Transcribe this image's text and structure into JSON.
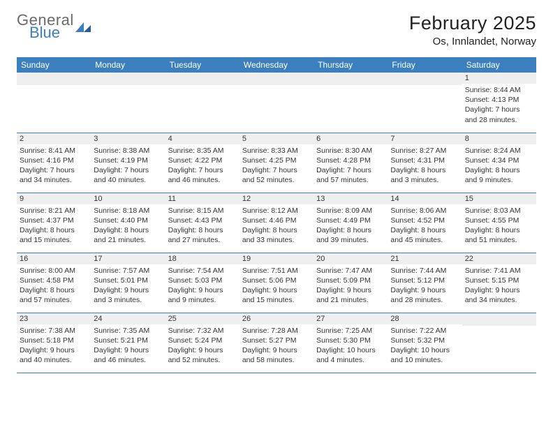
{
  "logo": {
    "text_top": "General",
    "text_bottom": "Blue"
  },
  "header": {
    "title": "February 2025",
    "subtitle": "Os, Innlandet, Norway"
  },
  "colors": {
    "accent": "#3b7fbf",
    "header_bg": "#3b7fbf",
    "header_fg": "#ffffff",
    "daynum_bg": "#efefef",
    "text": "#333333",
    "background": "#ffffff"
  },
  "calendar": {
    "day_headers": [
      "Sunday",
      "Monday",
      "Tuesday",
      "Wednesday",
      "Thursday",
      "Friday",
      "Saturday"
    ],
    "weeks": [
      {
        "cells": [
          {
            "day": "",
            "lines": []
          },
          {
            "day": "",
            "lines": []
          },
          {
            "day": "",
            "lines": []
          },
          {
            "day": "",
            "lines": []
          },
          {
            "day": "",
            "lines": []
          },
          {
            "day": "",
            "lines": []
          },
          {
            "day": "1",
            "lines": [
              "Sunrise: 8:44 AM",
              "Sunset: 4:13 PM",
              "Daylight: 7 hours and 28 minutes."
            ]
          }
        ]
      },
      {
        "cells": [
          {
            "day": "2",
            "lines": [
              "Sunrise: 8:41 AM",
              "Sunset: 4:16 PM",
              "Daylight: 7 hours and 34 minutes."
            ]
          },
          {
            "day": "3",
            "lines": [
              "Sunrise: 8:38 AM",
              "Sunset: 4:19 PM",
              "Daylight: 7 hours and 40 minutes."
            ]
          },
          {
            "day": "4",
            "lines": [
              "Sunrise: 8:35 AM",
              "Sunset: 4:22 PM",
              "Daylight: 7 hours and 46 minutes."
            ]
          },
          {
            "day": "5",
            "lines": [
              "Sunrise: 8:33 AM",
              "Sunset: 4:25 PM",
              "Daylight: 7 hours and 52 minutes."
            ]
          },
          {
            "day": "6",
            "lines": [
              "Sunrise: 8:30 AM",
              "Sunset: 4:28 PM",
              "Daylight: 7 hours and 57 minutes."
            ]
          },
          {
            "day": "7",
            "lines": [
              "Sunrise: 8:27 AM",
              "Sunset: 4:31 PM",
              "Daylight: 8 hours and 3 minutes."
            ]
          },
          {
            "day": "8",
            "lines": [
              "Sunrise: 8:24 AM",
              "Sunset: 4:34 PM",
              "Daylight: 8 hours and 9 minutes."
            ]
          }
        ]
      },
      {
        "cells": [
          {
            "day": "9",
            "lines": [
              "Sunrise: 8:21 AM",
              "Sunset: 4:37 PM",
              "Daylight: 8 hours and 15 minutes."
            ]
          },
          {
            "day": "10",
            "lines": [
              "Sunrise: 8:18 AM",
              "Sunset: 4:40 PM",
              "Daylight: 8 hours and 21 minutes."
            ]
          },
          {
            "day": "11",
            "lines": [
              "Sunrise: 8:15 AM",
              "Sunset: 4:43 PM",
              "Daylight: 8 hours and 27 minutes."
            ]
          },
          {
            "day": "12",
            "lines": [
              "Sunrise: 8:12 AM",
              "Sunset: 4:46 PM",
              "Daylight: 8 hours and 33 minutes."
            ]
          },
          {
            "day": "13",
            "lines": [
              "Sunrise: 8:09 AM",
              "Sunset: 4:49 PM",
              "Daylight: 8 hours and 39 minutes."
            ]
          },
          {
            "day": "14",
            "lines": [
              "Sunrise: 8:06 AM",
              "Sunset: 4:52 PM",
              "Daylight: 8 hours and 45 minutes."
            ]
          },
          {
            "day": "15",
            "lines": [
              "Sunrise: 8:03 AM",
              "Sunset: 4:55 PM",
              "Daylight: 8 hours and 51 minutes."
            ]
          }
        ]
      },
      {
        "cells": [
          {
            "day": "16",
            "lines": [
              "Sunrise: 8:00 AM",
              "Sunset: 4:58 PM",
              "Daylight: 8 hours and 57 minutes."
            ]
          },
          {
            "day": "17",
            "lines": [
              "Sunrise: 7:57 AM",
              "Sunset: 5:01 PM",
              "Daylight: 9 hours and 3 minutes."
            ]
          },
          {
            "day": "18",
            "lines": [
              "Sunrise: 7:54 AM",
              "Sunset: 5:03 PM",
              "Daylight: 9 hours and 9 minutes."
            ]
          },
          {
            "day": "19",
            "lines": [
              "Sunrise: 7:51 AM",
              "Sunset: 5:06 PM",
              "Daylight: 9 hours and 15 minutes."
            ]
          },
          {
            "day": "20",
            "lines": [
              "Sunrise: 7:47 AM",
              "Sunset: 5:09 PM",
              "Daylight: 9 hours and 21 minutes."
            ]
          },
          {
            "day": "21",
            "lines": [
              "Sunrise: 7:44 AM",
              "Sunset: 5:12 PM",
              "Daylight: 9 hours and 28 minutes."
            ]
          },
          {
            "day": "22",
            "lines": [
              "Sunrise: 7:41 AM",
              "Sunset: 5:15 PM",
              "Daylight: 9 hours and 34 minutes."
            ]
          }
        ]
      },
      {
        "cells": [
          {
            "day": "23",
            "lines": [
              "Sunrise: 7:38 AM",
              "Sunset: 5:18 PM",
              "Daylight: 9 hours and 40 minutes."
            ]
          },
          {
            "day": "24",
            "lines": [
              "Sunrise: 7:35 AM",
              "Sunset: 5:21 PM",
              "Daylight: 9 hours and 46 minutes."
            ]
          },
          {
            "day": "25",
            "lines": [
              "Sunrise: 7:32 AM",
              "Sunset: 5:24 PM",
              "Daylight: 9 hours and 52 minutes."
            ]
          },
          {
            "day": "26",
            "lines": [
              "Sunrise: 7:28 AM",
              "Sunset: 5:27 PM",
              "Daylight: 9 hours and 58 minutes."
            ]
          },
          {
            "day": "27",
            "lines": [
              "Sunrise: 7:25 AM",
              "Sunset: 5:30 PM",
              "Daylight: 10 hours and 4 minutes."
            ]
          },
          {
            "day": "28",
            "lines": [
              "Sunrise: 7:22 AM",
              "Sunset: 5:32 PM",
              "Daylight: 10 hours and 10 minutes."
            ]
          },
          {
            "day": "",
            "lines": []
          }
        ]
      }
    ]
  }
}
